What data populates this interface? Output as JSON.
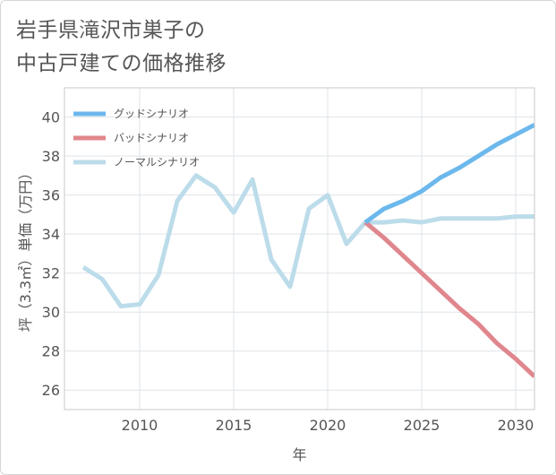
{
  "title_lines": [
    "岩手県滝沢市巣子の",
    "中古戸建ての価格推移"
  ],
  "chart_data": {
    "type": "line",
    "title": "岩手県滝沢市巣子の中古戸建ての価格推移",
    "xlabel": "年",
    "ylabel": "坪（3.3㎡）単価（万円）",
    "xlim": [
      2006,
      2031
    ],
    "ylim": [
      25,
      41.5
    ],
    "xticks": [
      2010,
      2015,
      2020,
      2025,
      2030
    ],
    "yticks": [
      26,
      28,
      30,
      32,
      34,
      36,
      38,
      40
    ],
    "grid": true,
    "legend_position": "top-left",
    "series": [
      {
        "name": "グッドシナリオ",
        "color": "#6cb8ec",
        "x": [
          2022,
          2023,
          2024,
          2025,
          2026,
          2027,
          2028,
          2029,
          2030,
          2031
        ],
        "y": [
          34.6,
          35.3,
          35.7,
          36.2,
          36.9,
          37.4,
          38.0,
          38.6,
          39.1,
          39.6
        ]
      },
      {
        "name": "バッドシナリオ",
        "color": "#e0868d",
        "x": [
          2022,
          2023,
          2024,
          2025,
          2026,
          2027,
          2028,
          2029,
          2030,
          2031
        ],
        "y": [
          34.6,
          33.8,
          32.9,
          32.0,
          31.1,
          30.2,
          29.4,
          28.4,
          27.6,
          26.7
        ]
      },
      {
        "name": "ノーマルシナリオ",
        "color": "#bcdcea",
        "x": [
          2007,
          2008,
          2009,
          2010,
          2011,
          2012,
          2013,
          2014,
          2015,
          2016,
          2017,
          2018,
          2019,
          2020,
          2021,
          2022,
          2023,
          2024,
          2025,
          2026,
          2027,
          2028,
          2029,
          2030,
          2031
        ],
        "y": [
          32.3,
          31.7,
          30.3,
          30.4,
          31.9,
          35.7,
          37.0,
          36.4,
          35.1,
          36.8,
          32.7,
          31.3,
          35.3,
          36.0,
          33.5,
          34.6,
          34.6,
          34.7,
          34.6,
          34.8,
          34.8,
          34.8,
          34.8,
          34.9,
          34.9
        ]
      }
    ]
  }
}
